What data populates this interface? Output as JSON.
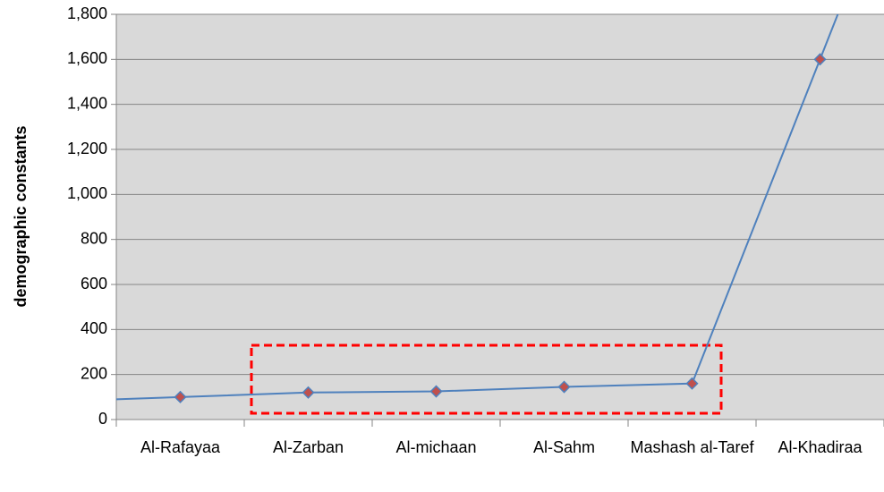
{
  "chart_data": {
    "type": "line",
    "y_label": "demographic constants",
    "categories": [
      "Al-Rafayaa",
      "Al-Zarban",
      "Al-michaan",
      "Al-Sahm",
      "Mashash al-Taref",
      "Al-Khadiraa"
    ],
    "series": [
      {
        "name": "demographic constants",
        "color": "#4f81bd",
        "marker_color": "#c0504d",
        "values": [
          100,
          120,
          125,
          145,
          160,
          1600
        ]
      }
    ],
    "ylim": [
      0,
      1800
    ],
    "yticks": [
      0,
      200,
      400,
      600,
      800,
      {
        "value": 1000,
        "label": "1,000"
      },
      {
        "value": 1200,
        "label": "1,200"
      },
      {
        "value": 1400,
        "label": "1,400"
      },
      {
        "value": 1600,
        "label": "1,600"
      },
      {
        "value": 1800,
        "label": "1,800"
      }
    ],
    "grid": true
  }
}
